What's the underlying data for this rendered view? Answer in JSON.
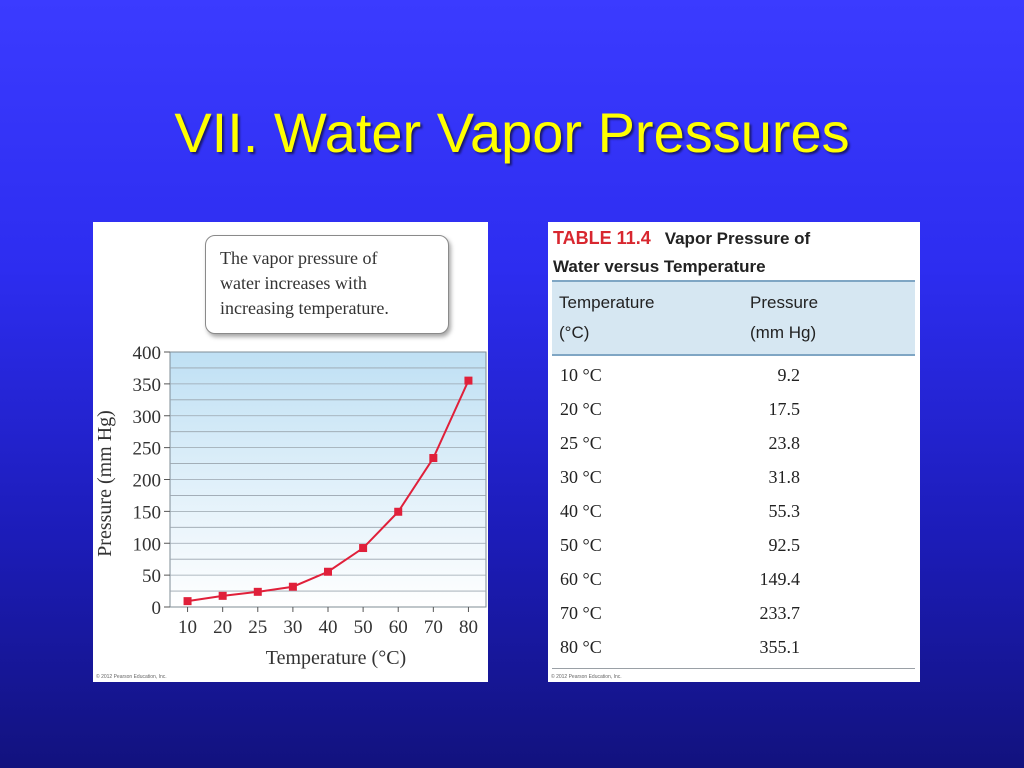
{
  "slide": {
    "title": "VII. Water Vapor Pressures"
  },
  "callout": {
    "lines": [
      "The vapor pressure of",
      "water increases with",
      "increasing temperature."
    ]
  },
  "copyright": "© 2012 Pearson Education, Inc.",
  "colors": {
    "background": "#2d2df0",
    "title": "#ffff00",
    "series": "#e0203a",
    "plot_bg_top": "#bfe0f4",
    "table_header_bg": "#d6e7f2",
    "table_label": "#d8272f"
  },
  "chart_data": {
    "type": "line",
    "categories": [
      "10",
      "20",
      "25",
      "30",
      "40",
      "50",
      "60",
      "70",
      "80"
    ],
    "series": [
      {
        "values": [
          9.2,
          17.5,
          23.8,
          31.8,
          55.3,
          92.5,
          149.4,
          233.7,
          355.1
        ]
      }
    ],
    "xlabel": "Temperature (°C)",
    "ylabel": "Pressure (mm Hg)",
    "ylim": [
      0,
      400
    ],
    "yticks": [
      "0",
      "50",
      "100",
      "150",
      "200",
      "250",
      "300",
      "350",
      "400"
    ],
    "grid": true,
    "marker": "square"
  },
  "table": {
    "label": "TABLE 11.4",
    "caption_line1": "Vapor Pressure of",
    "caption_line2": "Water versus Temperature",
    "headers": [
      {
        "line1": "Temperature",
        "line2": "(°C)"
      },
      {
        "line1": "Pressure",
        "line2": "(mm Hg)"
      }
    ],
    "rows": [
      {
        "temp": "10 °C",
        "pressure": "9.2"
      },
      {
        "temp": "20 °C",
        "pressure": "17.5"
      },
      {
        "temp": "25 °C",
        "pressure": "23.8"
      },
      {
        "temp": "30 °C",
        "pressure": "31.8"
      },
      {
        "temp": "40 °C",
        "pressure": "55.3"
      },
      {
        "temp": "50 °C",
        "pressure": "92.5"
      },
      {
        "temp": "60 °C",
        "pressure": "149.4"
      },
      {
        "temp": "70 °C",
        "pressure": "233.7"
      },
      {
        "temp": "80 °C",
        "pressure": "355.1"
      }
    ]
  }
}
